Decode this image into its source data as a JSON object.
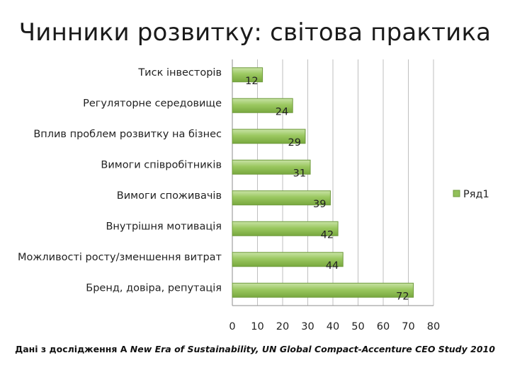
{
  "slide": {
    "title": "Чинники розвитку: світова практика",
    "footnote_prefix": "Дані з дослідження A ",
    "footnote_italic": "New Era of Sustainability, UN Global Compact-Accenture CEO Study 2010"
  },
  "chart_data": {
    "type": "bar",
    "orientation": "horizontal",
    "categories": [
      "Тиск інвесторів",
      "Регуляторне середовище",
      "Вплив проблем розвитку на бізнес",
      "Вимоги співробітників",
      "Вимоги споживачів",
      "Внутрішня мотивація",
      "Можливості росту/зменшення витрат",
      "Бренд, довіра, репутація"
    ],
    "series": [
      {
        "name": "Ряд1",
        "values": [
          12,
          24,
          29,
          31,
          39,
          42,
          44,
          72
        ]
      }
    ],
    "xlim": [
      0,
      80
    ],
    "xticks": [
      "0",
      "10",
      "20",
      "30",
      "40",
      "50",
      "60",
      "70",
      "80"
    ],
    "grid": true,
    "legend": "right",
    "colors": {
      "bar": "#92c05a",
      "bar_edge": "#6f9a3c",
      "grid": "#bfbfbf"
    }
  }
}
